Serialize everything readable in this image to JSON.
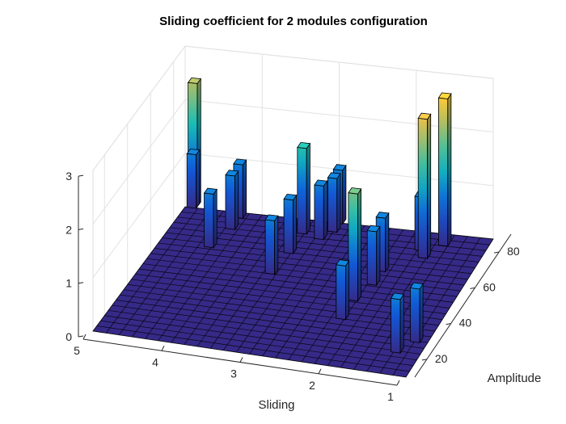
{
  "chart_data": {
    "type": "bar3",
    "title": "Sliding coefficient for 2 modules configuration",
    "xlabel": "Sliding",
    "ylabel": "Amplitude",
    "zlabel": "",
    "x_ticks": [
      1,
      2,
      3,
      4,
      5
    ],
    "y_ticks": [
      20,
      40,
      60,
      80
    ],
    "z_ticks": [
      0,
      1,
      2,
      3
    ],
    "xlim": [
      1,
      5
    ],
    "ylim": [
      10,
      90
    ],
    "zlim": [
      0,
      3
    ],
    "grid": true,
    "colormap": "parula",
    "floor_color": "#352a87",
    "bars": [
      {
        "x": 4.85,
        "y": 88,
        "z": 2.3
      },
      {
        "x": 4.85,
        "y": 87,
        "z": 1.0
      },
      {
        "x": 4.3,
        "y": 65,
        "z": 1.0
      },
      {
        "x": 4.2,
        "y": 77,
        "z": 1.0
      },
      {
        "x": 4.2,
        "y": 84,
        "z": 1.0
      },
      {
        "x": 3.35,
        "y": 54,
        "z": 1.0
      },
      {
        "x": 3.3,
        "y": 79,
        "z": 1.6
      },
      {
        "x": 3.3,
        "y": 67,
        "z": 1.0
      },
      {
        "x": 3.05,
        "y": 77,
        "z": 1.0
      },
      {
        "x": 2.95,
        "y": 82,
        "z": 1.0
      },
      {
        "x": 2.95,
        "y": 87,
        "z": 1.0
      },
      {
        "x": 2.15,
        "y": 45,
        "z": 2.0
      },
      {
        "x": 2.15,
        "y": 34,
        "z": 1.0
      },
      {
        "x": 2.05,
        "y": 55,
        "z": 1.0
      },
      {
        "x": 2.05,
        "y": 63,
        "z": 1.0
      },
      {
        "x": 1.75,
        "y": 77,
        "z": 1.0
      },
      {
        "x": 1.65,
        "y": 73,
        "z": 2.6
      },
      {
        "x": 1.5,
        "y": 81,
        "z": 2.75
      },
      {
        "x": 1.25,
        "y": 20,
        "z": 1.0
      },
      {
        "x": 1.1,
        "y": 27,
        "z": 1.0
      }
    ]
  }
}
